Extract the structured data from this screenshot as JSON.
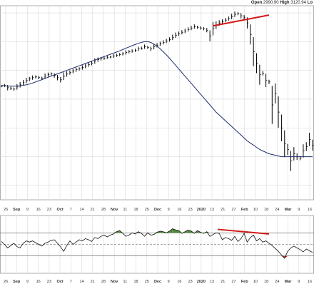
{
  "header": {
    "open_label": "Open",
    "open_value": "2990.90",
    "high_label": "High",
    "high_value": "3120.94",
    "low_label": "Lo"
  },
  "colors": {
    "price_bar": "#000000",
    "moving_average": "#1f2d6e",
    "trendline": "#d21a1a",
    "overbought_fill": "#4f8a3a",
    "oversold_fill": "#b03030",
    "grid": "#d9d9d9"
  },
  "chart_data": [
    {
      "type": "ohlc",
      "title": "",
      "xlabel": "",
      "ylabel": "",
      "grid": true,
      "ylim": [
        2100,
        3450
      ],
      "x_ticks": [
        "26",
        "Sep",
        "9",
        "16",
        "23",
        "Oct",
        "7",
        "14",
        "21",
        "28",
        "Nov",
        "11",
        "18",
        "25",
        "Dec",
        "9",
        "16",
        "23",
        "2020",
        "13",
        "21",
        "27",
        "Feb",
        "10",
        "18",
        "24",
        "Mar",
        "9",
        "16"
      ],
      "bold_ticks": [
        "Sep",
        "Oct",
        "Nov",
        "Dec",
        "2020",
        "Feb",
        "Mar"
      ],
      "series": [
        {
          "name": "",
          "key": "price",
          "values": [
            2890,
            2895,
            2880,
            2875,
            2870,
            2885,
            2900,
            2915,
            2930,
            2940,
            2950,
            2955,
            2950,
            2945,
            2960,
            2970,
            2975,
            2965,
            2950,
            2935,
            2960,
            2975,
            2985,
            2995,
            3005,
            3010,
            3020,
            3030,
            3040,
            3050,
            3065,
            3075,
            3080,
            3085,
            3092,
            3093,
            3100,
            3105,
            3110,
            3115,
            3125,
            3130,
            3135,
            3140,
            3150,
            3155,
            3165,
            3160,
            3150,
            3165,
            3175,
            3185,
            3195,
            3205,
            3215,
            3230,
            3245,
            3255,
            3265,
            3275,
            3285,
            3295,
            3305,
            3300,
            3295,
            3290,
            3280,
            3240,
            3290,
            3315,
            3330,
            3340,
            3350,
            3360,
            3375,
            3390,
            3395,
            3380,
            3370,
            3330,
            3250,
            3130,
            3050,
            2970,
            2980,
            2930,
            2920,
            2760,
            2840,
            2710,
            2600,
            2490,
            2450,
            2370,
            2420,
            2400,
            2390,
            2440,
            2470,
            2520,
            2480
          ]
        },
        {
          "name": "",
          "key": "moving_average",
          "values": [
            2895,
            2893,
            2891,
            2890,
            2890,
            2891,
            2893,
            2896,
            2900,
            2905,
            2912,
            2920,
            2928,
            2936,
            2944,
            2952,
            2960,
            2968,
            2976,
            2984,
            2992,
            3000,
            3008,
            3016,
            3024,
            3032,
            3040,
            3048,
            3056,
            3064,
            3072,
            3080,
            3088,
            3096,
            3104,
            3112,
            3120,
            3128,
            3136,
            3145,
            3154,
            3163,
            3172,
            3180,
            3188,
            3195,
            3200,
            3200,
            3195,
            3183,
            3168,
            3150,
            3130,
            3108,
            3085,
            3060,
            3035,
            3010,
            2985,
            2960,
            2935,
            2910,
            2885,
            2860,
            2835,
            2810,
            2785,
            2760,
            2735,
            2710,
            2690,
            2670,
            2650,
            2630,
            2610,
            2590,
            2570,
            2550,
            2530,
            2510,
            2495,
            2480,
            2465,
            2450,
            2440,
            2430,
            2420,
            2415,
            2410,
            2405,
            2400,
            2400,
            2400,
            2400,
            2400,
            2400,
            2400,
            2400,
            2400,
            2400,
            2400
          ]
        }
      ],
      "annotations": [
        {
          "type": "trendline",
          "from": [
            0.68,
            3310
          ],
          "to": [
            0.86,
            3385
          ]
        }
      ]
    },
    {
      "type": "line",
      "title": "",
      "xlabel": "",
      "ylabel": "",
      "grid": true,
      "ylim": [
        0,
        100
      ],
      "levels": [
        70,
        50,
        30
      ],
      "x_ticks": [
        "26",
        "Sep",
        "9",
        "16",
        "23",
        "Oct",
        "7",
        "14",
        "21",
        "28",
        "Nov",
        "11",
        "18",
        "25",
        "Dec",
        "9",
        "16",
        "23",
        "2020",
        "13",
        "21",
        "27",
        "Feb",
        "10",
        "18",
        "24",
        "Mar",
        "9",
        "16"
      ],
      "bold_ticks": [
        "Sep",
        "Oct",
        "Nov",
        "Dec",
        "2020",
        "Feb",
        "Mar"
      ],
      "series": [
        {
          "name": "",
          "values": [
            55,
            50,
            44,
            48,
            52,
            46,
            44,
            52,
            56,
            54,
            56,
            53,
            50,
            47,
            52,
            54,
            57,
            58,
            52,
            46,
            38,
            48,
            56,
            50,
            54,
            58,
            56,
            60,
            58,
            55,
            62,
            60,
            64,
            66,
            63,
            66,
            68,
            72,
            74,
            69,
            64,
            66,
            70,
            68,
            72,
            69,
            64,
            70,
            66,
            67,
            71,
            73,
            72,
            70,
            73,
            77,
            75,
            74,
            69,
            72,
            75,
            73,
            69,
            74,
            71,
            69,
            72,
            64,
            67,
            70,
            69,
            58,
            62,
            60,
            57,
            64,
            55,
            60,
            69,
            54,
            62,
            66,
            56,
            60,
            54,
            56,
            52,
            48,
            43,
            38,
            32,
            26,
            38,
            44,
            47,
            44,
            41,
            37,
            42,
            39,
            36
          ]
        }
      ],
      "annotations": [
        {
          "type": "trendline",
          "from": [
            0.695,
            76
          ],
          "to": [
            0.86,
            68
          ]
        }
      ]
    }
  ]
}
